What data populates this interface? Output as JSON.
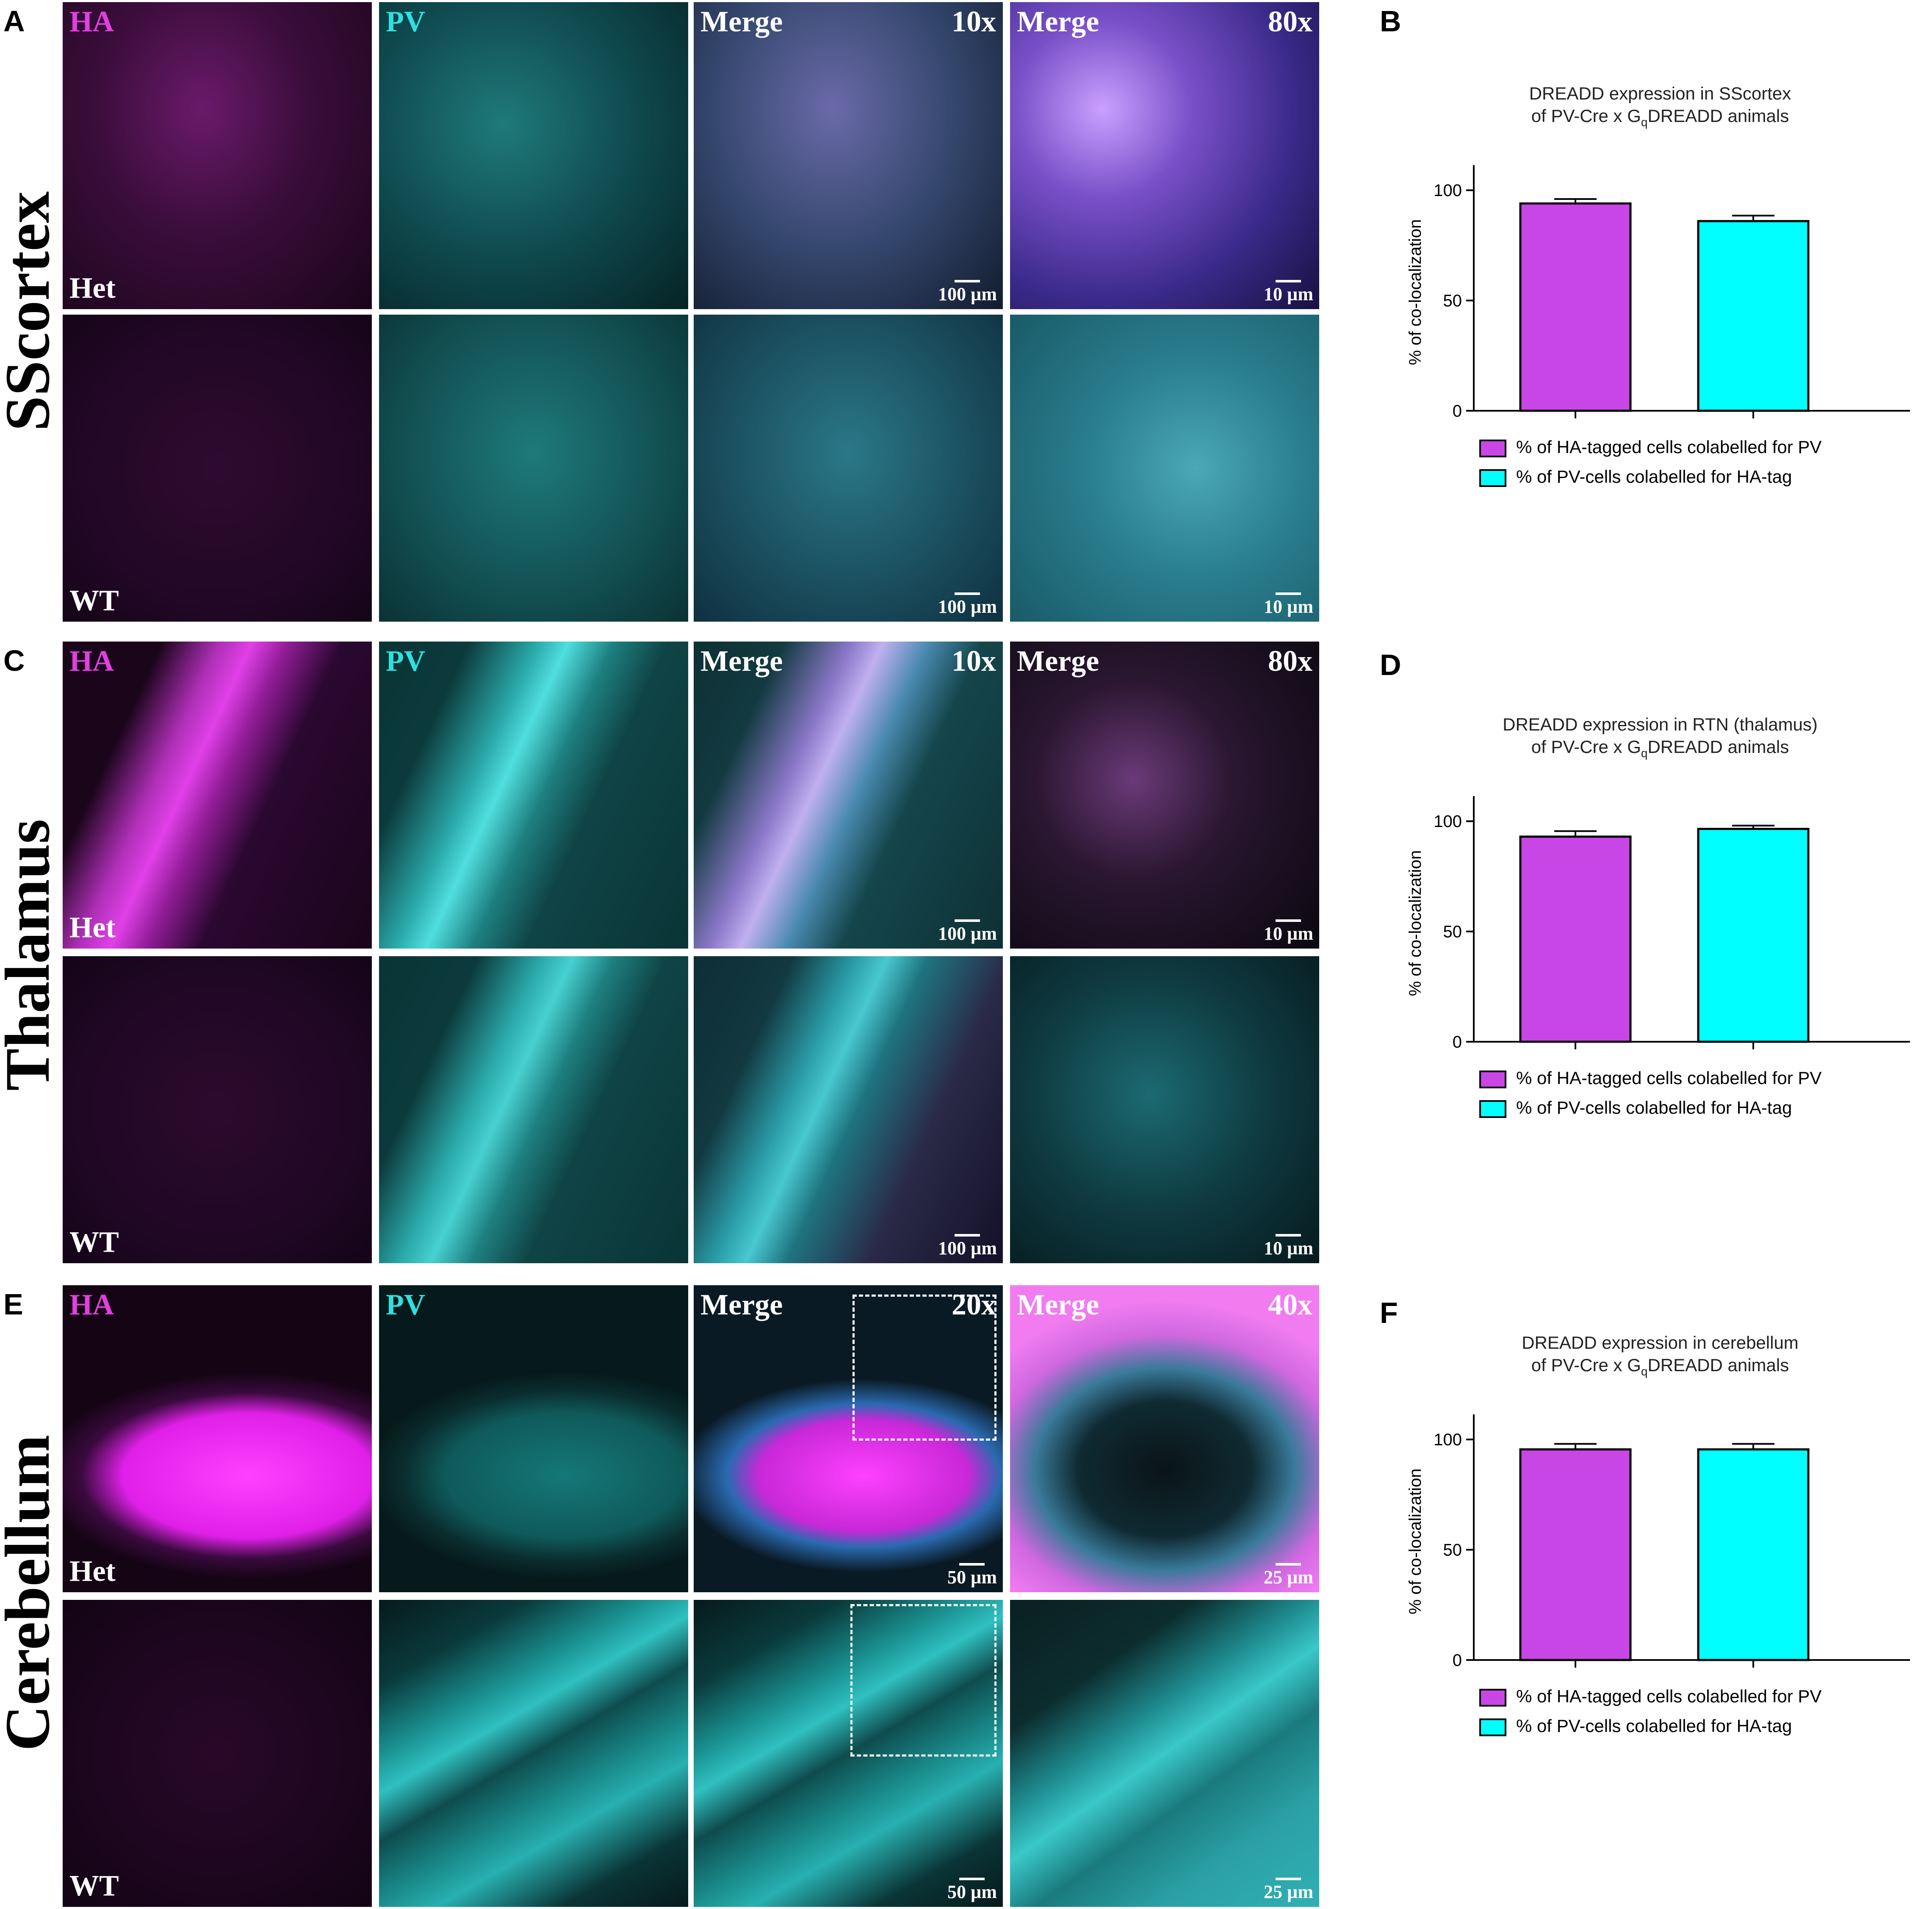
{
  "panels": {
    "A": "A",
    "B": "B",
    "C": "C",
    "D": "D",
    "E": "E",
    "F": "F"
  },
  "regions": {
    "sscortex": "SScortex",
    "thalamus": "Thalamus",
    "cerebellum": "Cerebellum"
  },
  "labels": {
    "ha": "HA",
    "pv": "PV",
    "merge": "Merge",
    "het": "Het",
    "wt": "WT",
    "mag10": "10x",
    "mag80": "80x",
    "mag20": "20x",
    "mag40": "40x",
    "sb100": "100 µm",
    "sb10": "10 µm",
    "sb50": "50 µm",
    "sb25": "25 µm"
  },
  "colors": {
    "ha": "#c846e6",
    "pv": "#00ffff",
    "axis": "#000000"
  },
  "chart_data": [
    {
      "type": "bar",
      "title_line1": "DREADD expression in SScortex",
      "title_line2_pre": "of PV-Cre x G",
      "title_line2_sub": "q",
      "title_line2_post": "DREADD animals",
      "ylabel": "% of co-localization",
      "ylim": [
        0,
        100
      ],
      "yticks": [
        "0",
        "50",
        "100"
      ],
      "series": [
        {
          "name": "% of HA-tagged cells colabelled for PV",
          "value": 94,
          "error": 2
        },
        {
          "name": "% of PV-cells colabelled for HA-tag",
          "value": 86,
          "error": 2.5
        }
      ]
    },
    {
      "type": "bar",
      "title_line1": "DREADD expression in RTN (thalamus)",
      "title_line2_pre": "of PV-Cre x G",
      "title_line2_sub": "q",
      "title_line2_post": "DREADD animals",
      "ylabel": "% of co-localization",
      "ylim": [
        0,
        100
      ],
      "yticks": [
        "0",
        "50",
        "100"
      ],
      "series": [
        {
          "name": "% of HA-tagged cells colabelled for PV",
          "value": 93,
          "error": 2.5
        },
        {
          "name": "% of PV-cells colabelled for HA-tag",
          "value": 96.5,
          "error": 1.5
        }
      ]
    },
    {
      "type": "bar",
      "title_line1": "DREADD expression in cerebellum",
      "title_line2_pre": "of PV-Cre x G",
      "title_line2_sub": "q",
      "title_line2_post": "DREADD animals",
      "ylabel": "% of co-localization",
      "ylim": [
        0,
        100
      ],
      "yticks": [
        "0",
        "50",
        "100"
      ],
      "series": [
        {
          "name": "% of HA-tagged cells colabelled for PV",
          "value": 95.5,
          "error": 2.5
        },
        {
          "name": "% of PV-cells colabelled for HA-tag",
          "value": 95.5,
          "error": 2.5
        }
      ]
    }
  ]
}
